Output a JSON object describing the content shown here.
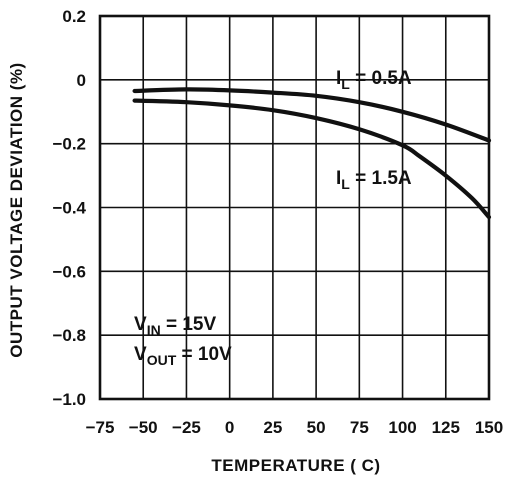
{
  "chart_data": {
    "type": "line",
    "xlabel": "TEMPERATURE ( C)",
    "ylabel": "OUTPUT VOLTAGE DEVIATION (%)",
    "xlim": [
      -75,
      150
    ],
    "ylim": [
      -1.0,
      0.2
    ],
    "x_ticks": [
      -75,
      -50,
      -25,
      0,
      25,
      50,
      75,
      100,
      125,
      150
    ],
    "x_tick_labels": [
      "−75",
      "−50",
      "−25",
      "0",
      "25",
      "50",
      "75",
      "100",
      "125",
      "150"
    ],
    "y_ticks": [
      0.2,
      0,
      -0.2,
      -0.4,
      -0.6,
      -0.8,
      -1.0
    ],
    "y_tick_labels": [
      "0.2",
      "0",
      "−0.2",
      "−0.4",
      "−0.6",
      "−0.8",
      "−1.0"
    ],
    "grid": true,
    "series": [
      {
        "name": "I_L = 0.5A",
        "label_main": "I",
        "label_sub": "L",
        "label_rest": " = 0.5A",
        "x": [
          -55,
          -25,
          0,
          25,
          50,
          75,
          100,
          125,
          150
        ],
        "y": [
          -0.035,
          -0.03,
          -0.033,
          -0.04,
          -0.05,
          -0.07,
          -0.1,
          -0.14,
          -0.19
        ]
      },
      {
        "name": "I_L = 1.5A",
        "label_main": "I",
        "label_sub": "L",
        "label_rest": " = 1.5A",
        "x": [
          -55,
          -25,
          0,
          25,
          50,
          75,
          100,
          110,
          125,
          140,
          150
        ],
        "y": [
          -0.065,
          -0.07,
          -0.08,
          -0.095,
          -0.12,
          -0.155,
          -0.205,
          -0.24,
          -0.3,
          -0.37,
          -0.43
        ]
      }
    ],
    "conditions": [
      {
        "main": "V",
        "sub": "IN",
        "rest": " = 15V"
      },
      {
        "main": "V",
        "sub": "OUT",
        "rest": " = 10V"
      }
    ]
  }
}
